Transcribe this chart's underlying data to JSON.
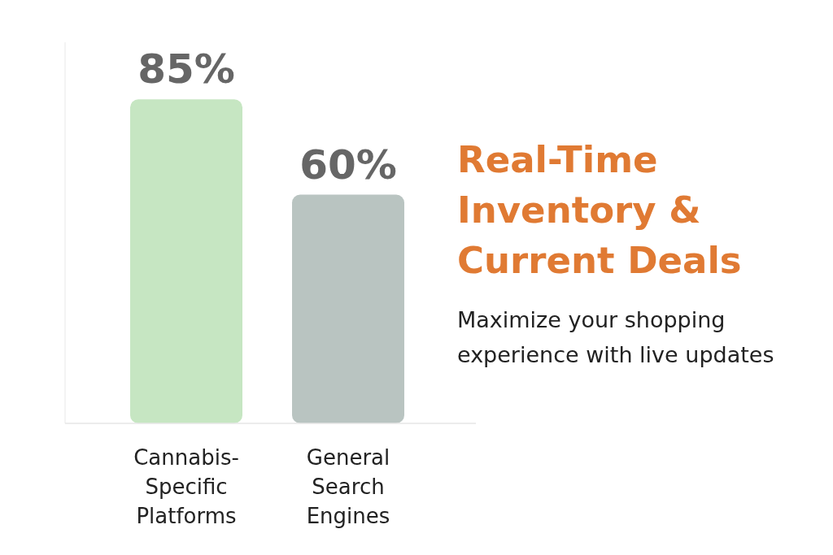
{
  "chart_data": {
    "type": "bar",
    "title": "Real-Time Inventory & Current Deals",
    "subtitle": "Maximize your shopping experience with live updates",
    "categories": [
      "Cannabis-Specific Platforms",
      "General Search Engines"
    ],
    "values": [
      85,
      60
    ],
    "colors": [
      "#c6e6c2",
      "#b9c4c1"
    ],
    "value_labels": [
      "85%",
      "60%"
    ],
    "ylim": [
      0,
      100
    ],
    "tick_labels": "x",
    "grid": false
  }
}
